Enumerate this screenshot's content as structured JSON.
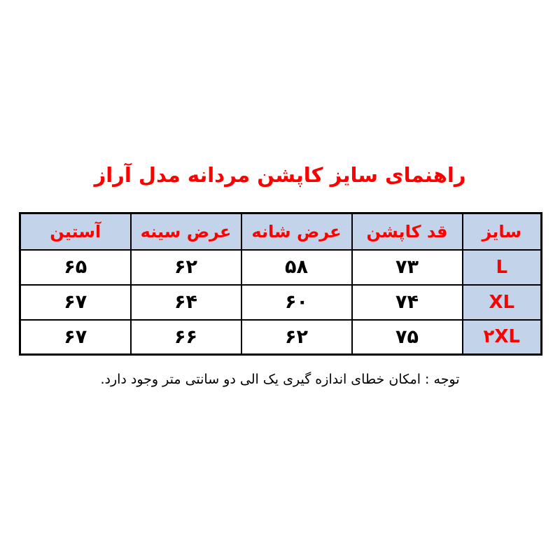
{
  "title": {
    "text": "راهنمای سایز کاپشن مردانه مدل آراز",
    "color": "#ff0000"
  },
  "table": {
    "header_bg": "#c3d3e9",
    "size_column_bg": "#c3d3e9",
    "header_text_color": "#ff0000",
    "size_text_color": "#ff0000",
    "value_text_color": "#000000",
    "border_color": "#000000",
    "columns": [
      "سایز",
      "قد کاپشن",
      "عرض شانه",
      "عرض سینه",
      "آستین"
    ],
    "rows": [
      {
        "size": "L",
        "values": [
          "۷۳",
          "۵۸",
          "۶۲",
          "۶۵"
        ]
      },
      {
        "size": "XL",
        "values": [
          "۷۴",
          "۶۰",
          "۶۴",
          "۶۷"
        ]
      },
      {
        "size": "۲XL",
        "values": [
          "۷۵",
          "۶۲",
          "۶۶",
          "۶۷"
        ]
      }
    ]
  },
  "chart_data": {
    "type": "table",
    "title": "راهنمای سایز کاپشن مردانه مدل آراز",
    "columns_rtl": [
      "سایز",
      "قد کاپشن",
      "عرض شانه",
      "عرض سینه",
      "آستین"
    ],
    "rows_western_digits": [
      {
        "size": "L",
        "jacket_length": 73,
        "shoulder_width": 58,
        "chest_width": 62,
        "sleeve": 65
      },
      {
        "size": "XL",
        "jacket_length": 74,
        "shoulder_width": 60,
        "chest_width": 64,
        "sleeve": 67
      },
      {
        "size": "2XL",
        "jacket_length": 75,
        "shoulder_width": 62,
        "chest_width": 66,
        "sleeve": 67
      }
    ]
  },
  "note": {
    "text": "توجه : امکان خطای اندازه گیری یک الی دو سانتی متر وجود دارد."
  }
}
